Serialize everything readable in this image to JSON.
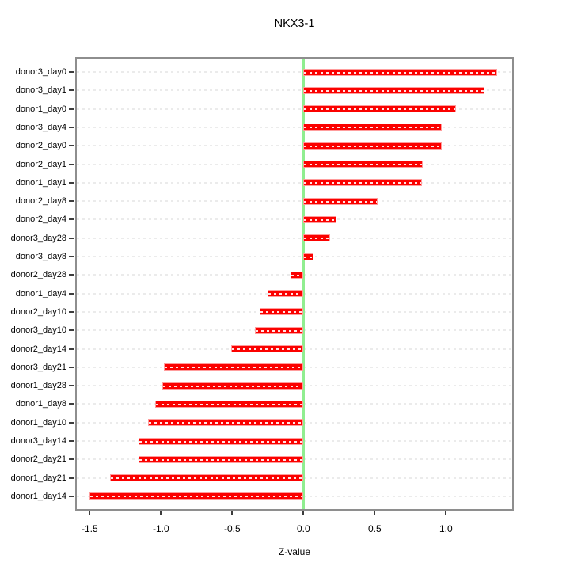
{
  "title": "NKX3-1",
  "chart_data": {
    "type": "bar",
    "orientation": "horizontal",
    "title": "NKX3-1",
    "xlabel": "Z-value",
    "ylabel": "",
    "categories": [
      "donor3_day0",
      "donor3_day1",
      "donor1_day0",
      "donor3_day4",
      "donor2_day0",
      "donor2_day1",
      "donor1_day1",
      "donor2_day8",
      "donor2_day4",
      "donor3_day28",
      "donor3_day8",
      "donor2_day28",
      "donor1_day4",
      "donor2_day10",
      "donor3_day10",
      "donor2_day14",
      "donor3_day21",
      "donor1_day28",
      "donor1_day8",
      "donor1_day10",
      "donor3_day14",
      "donor2_day21",
      "donor1_day21",
      "donor1_day14"
    ],
    "values": [
      1.36,
      1.27,
      1.07,
      0.97,
      0.97,
      0.84,
      0.83,
      0.52,
      0.23,
      0.19,
      0.07,
      -0.09,
      -0.25,
      -0.31,
      -0.34,
      -0.51,
      -0.98,
      -0.99,
      -1.04,
      -1.09,
      -1.16,
      -1.16,
      -1.36,
      -1.5
    ],
    "x_ticks": [
      -1.5,
      -1.0,
      -0.5,
      0.0,
      0.5,
      1.0
    ],
    "xlim": [
      -1.6,
      1.48
    ],
    "grid": true,
    "legend_position": "none",
    "colors": {
      "bar": "#fb0100",
      "bar_border": "#ff9c9c",
      "bar_dash": "rgba(255,255,255,0.9)",
      "zero_line": "#90ee90",
      "gridline": "#ebebeb",
      "frame": "#8e8e8e",
      "tick": "#3c3c3c",
      "text": "#000000"
    }
  }
}
